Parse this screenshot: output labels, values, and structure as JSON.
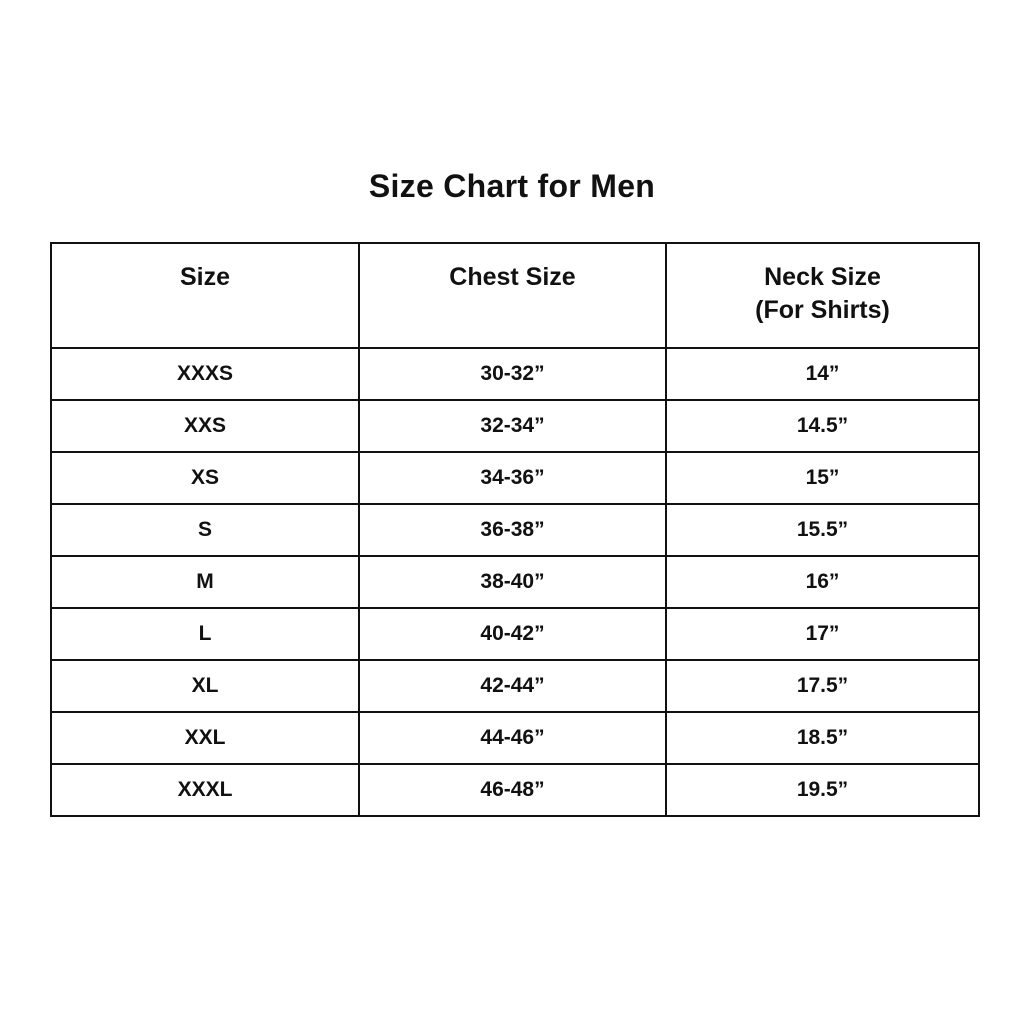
{
  "page": {
    "title": "Size Chart for Men"
  },
  "colors": {
    "background": "#ffffff",
    "text": "#111111",
    "border": "#111111"
  },
  "table": {
    "headers": {
      "size": "Size",
      "chest": "Chest Size",
      "neck_line1": "Neck Size",
      "neck_line2": "(For Shirts)"
    },
    "rows": [
      [
        "XXXS",
        "30-32”",
        "14”"
      ],
      [
        "XXS",
        "32-34”",
        "14.5”"
      ],
      [
        "XS",
        "34-36”",
        "15”"
      ],
      [
        "S",
        "36-38”",
        "15.5”"
      ],
      [
        "M",
        "38-40”",
        "16”"
      ],
      [
        "L",
        "40-42”",
        "17”"
      ],
      [
        "XL",
        "42-44”",
        "17.5”"
      ],
      [
        "XXL",
        "44-46”",
        "18.5”"
      ],
      [
        "XXXL",
        "46-48”",
        "19.5”"
      ]
    ]
  },
  "chart_data": {
    "type": "table",
    "title": "Size Chart for Men",
    "columns": [
      "Size",
      "Chest Size",
      "Neck Size (For Shirts)"
    ],
    "rows": [
      {
        "size": "XXXS",
        "chest_size_in": "30-32”",
        "neck_size_in": "14”"
      },
      {
        "size": "XXS",
        "chest_size_in": "32-34”",
        "neck_size_in": "14.5”"
      },
      {
        "size": "XS",
        "chest_size_in": "34-36”",
        "neck_size_in": "15”"
      },
      {
        "size": "S",
        "chest_size_in": "36-38”",
        "neck_size_in": "15.5”"
      },
      {
        "size": "M",
        "chest_size_in": "38-40”",
        "neck_size_in": "16”"
      },
      {
        "size": "L",
        "chest_size_in": "40-42”",
        "neck_size_in": "17”"
      },
      {
        "size": "XL",
        "chest_size_in": "42-44”",
        "neck_size_in": "17.5”"
      },
      {
        "size": "XXL",
        "chest_size_in": "44-46”",
        "neck_size_in": "18.5”"
      },
      {
        "size": "XXXL",
        "chest_size_in": "46-48”",
        "neck_size_in": "19.5”"
      }
    ]
  }
}
